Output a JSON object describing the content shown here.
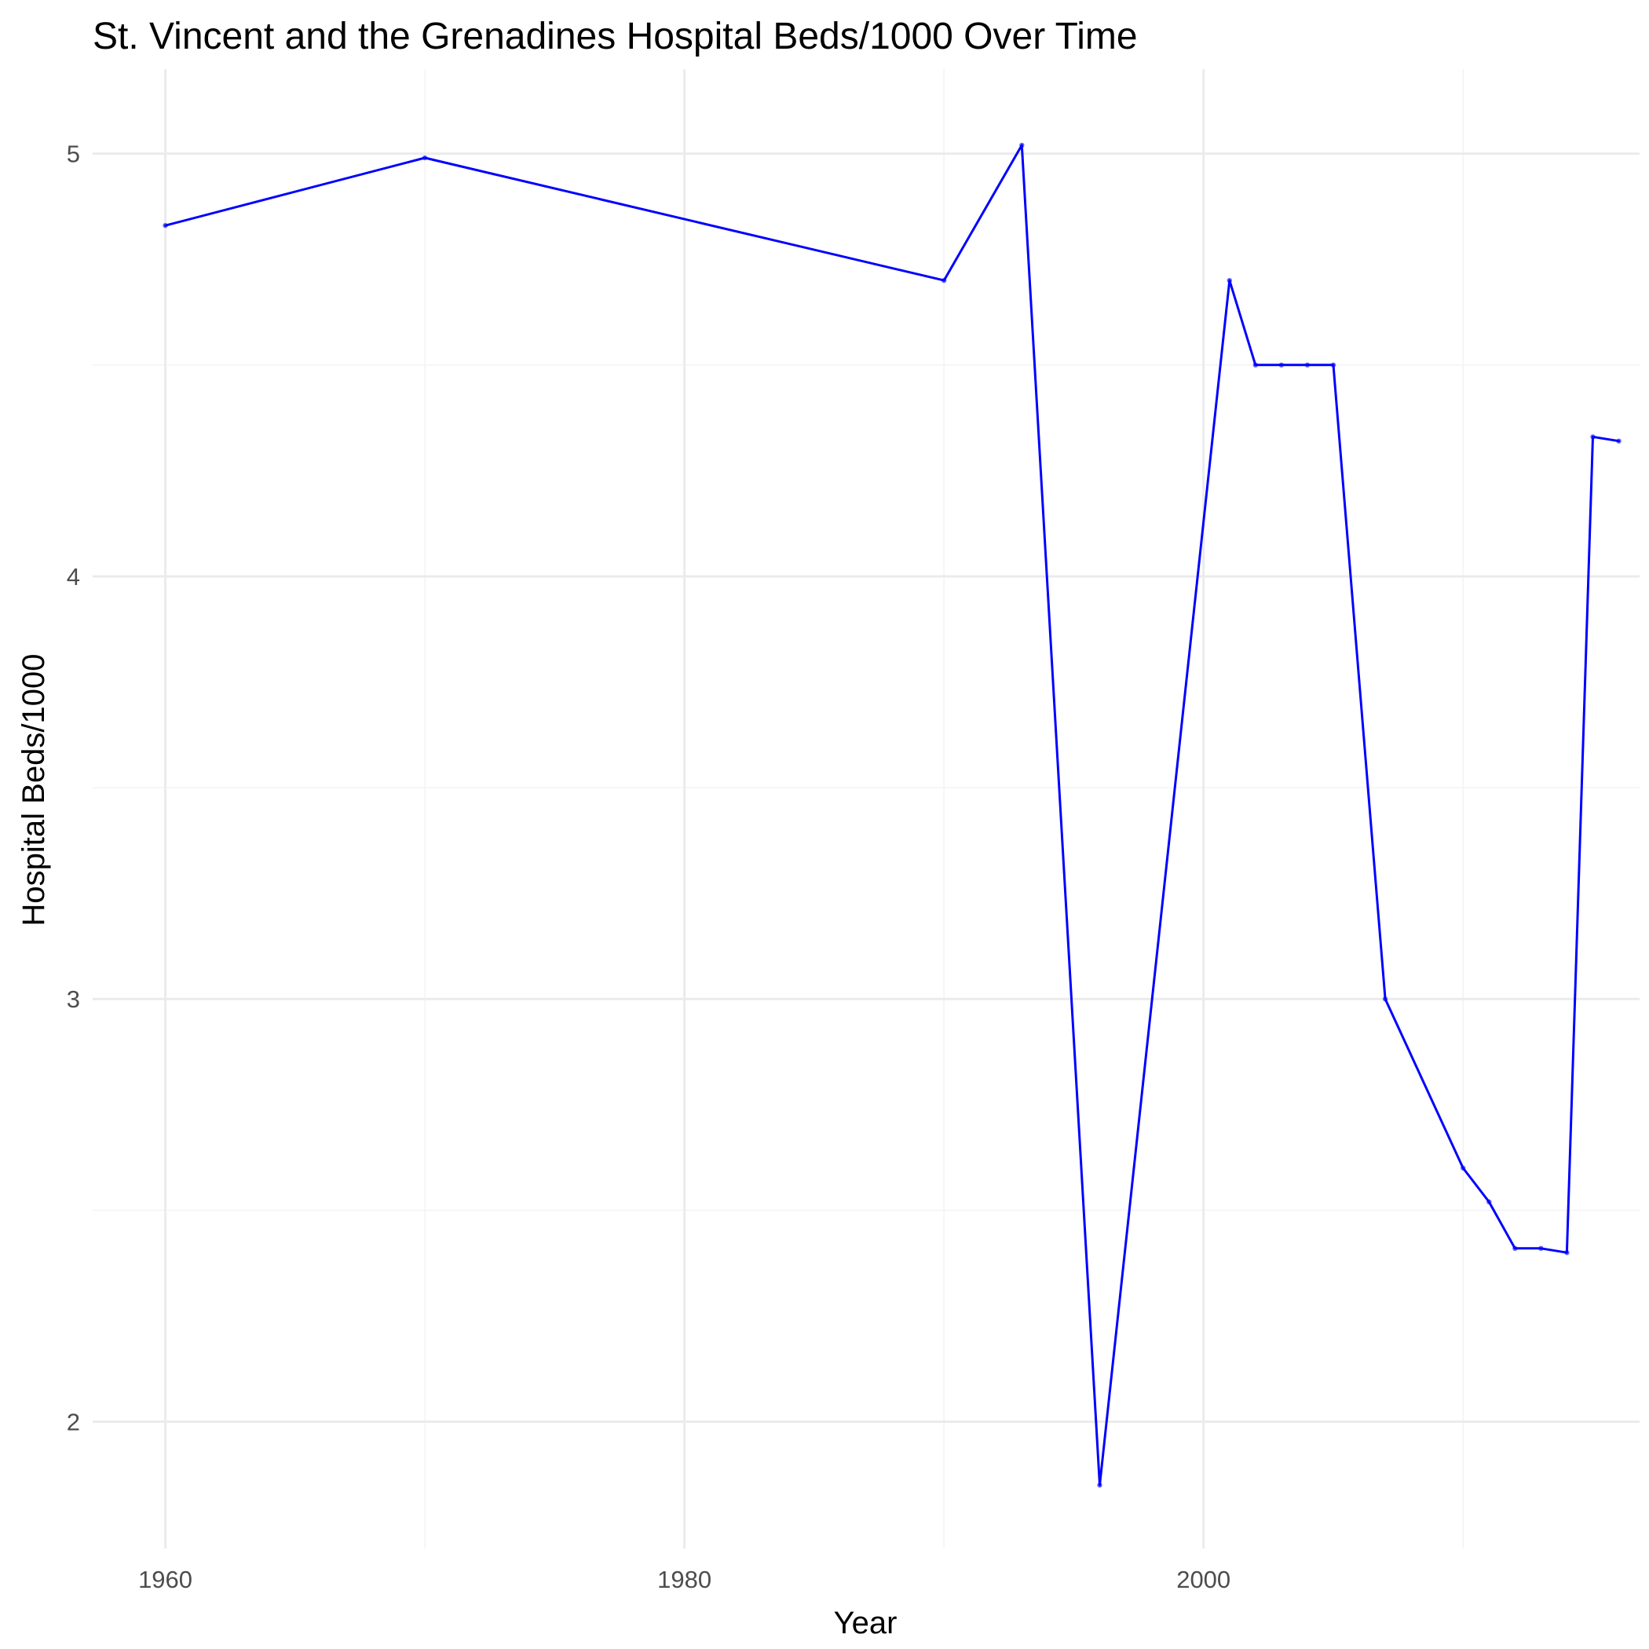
{
  "chart_data": {
    "type": "line",
    "title": "St. Vincent and the Grenadines Hospital Beds/1000 Over Time",
    "xlabel": "Year",
    "ylabel": "Hospital Beds/1000",
    "xlim": [
      1957.2,
      2016.8
    ],
    "ylim": [
      1.7,
      5.2
    ],
    "x_ticks": [
      1960,
      1980,
      2000
    ],
    "x_tick_labels": [
      "1960",
      "1980",
      "2000"
    ],
    "y_ticks": [
      2,
      3,
      4,
      5
    ],
    "y_tick_labels": [
      "2",
      "3",
      "4",
      "5"
    ],
    "x_minor_ticks": [
      1970,
      1990,
      2010
    ],
    "y_minor_ticks": [
      2.5,
      3.5,
      4.5
    ],
    "grid": true,
    "legend": "none",
    "series": [
      {
        "color": "#0000ff",
        "x": [
          1960,
          1970,
          1990,
          1993,
          1996,
          2001,
          2002,
          2003,
          2004,
          2005,
          2007,
          2010,
          2011,
          2012,
          2013,
          2014,
          2015,
          2016
        ],
        "y": [
          4.83,
          4.99,
          4.7,
          5.02,
          1.85,
          4.7,
          4.5,
          4.5,
          4.5,
          4.5,
          3.0,
          2.6,
          2.52,
          2.41,
          2.41,
          2.4,
          4.33,
          4.32
        ]
      }
    ]
  }
}
